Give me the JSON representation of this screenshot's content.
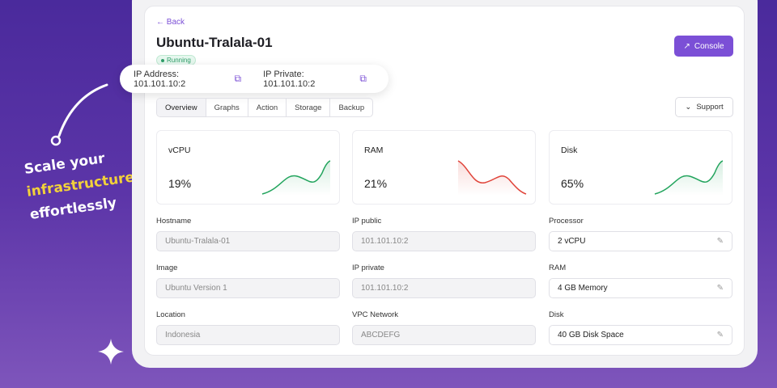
{
  "tagline": {
    "line1": "Scale your",
    "line2": "infrastructure",
    "line3": "effortlessly"
  },
  "header": {
    "back": "Back",
    "title": "Ubuntu-Tralala-01",
    "status": "Running",
    "console": "Console"
  },
  "ip": {
    "address": "IP Address: 101.101.10:2",
    "private": "IP Private: 101.101.10:2"
  },
  "tabs": [
    "Overview",
    "Graphs",
    "Action",
    "Storage",
    "Backup"
  ],
  "support": "Support",
  "metrics": [
    {
      "label": "vCPU",
      "value": "19%",
      "trend": "up",
      "color": "#22a45d"
    },
    {
      "label": "RAM",
      "value": "21%",
      "trend": "down",
      "color": "#e0443a"
    },
    {
      "label": "Disk",
      "value": "65%",
      "trend": "up",
      "color": "#22a45d"
    }
  ],
  "fields": [
    {
      "label": "Hostname",
      "value": "Ubuntu-Tralala-01",
      "editable": false
    },
    {
      "label": "IP public",
      "value": "101.101.10:2",
      "editable": false
    },
    {
      "label": "Processor",
      "value": "2 vCPU",
      "editable": true
    },
    {
      "label": "Image",
      "value": "Ubuntu Version 1",
      "editable": false
    },
    {
      "label": "IP private",
      "value": "101.101.10:2",
      "editable": false
    },
    {
      "label": "RAM",
      "value": "4 GB Memory",
      "editable": true
    },
    {
      "label": "Location",
      "value": "Indonesia",
      "editable": false
    },
    {
      "label": "VPC Network",
      "value": "ABCDEFG",
      "editable": false
    },
    {
      "label": "Disk",
      "value": "40 GB Disk Space",
      "editable": true
    }
  ],
  "colors": {
    "accent": "#7b4fd6",
    "success": "#2f9e6a"
  }
}
